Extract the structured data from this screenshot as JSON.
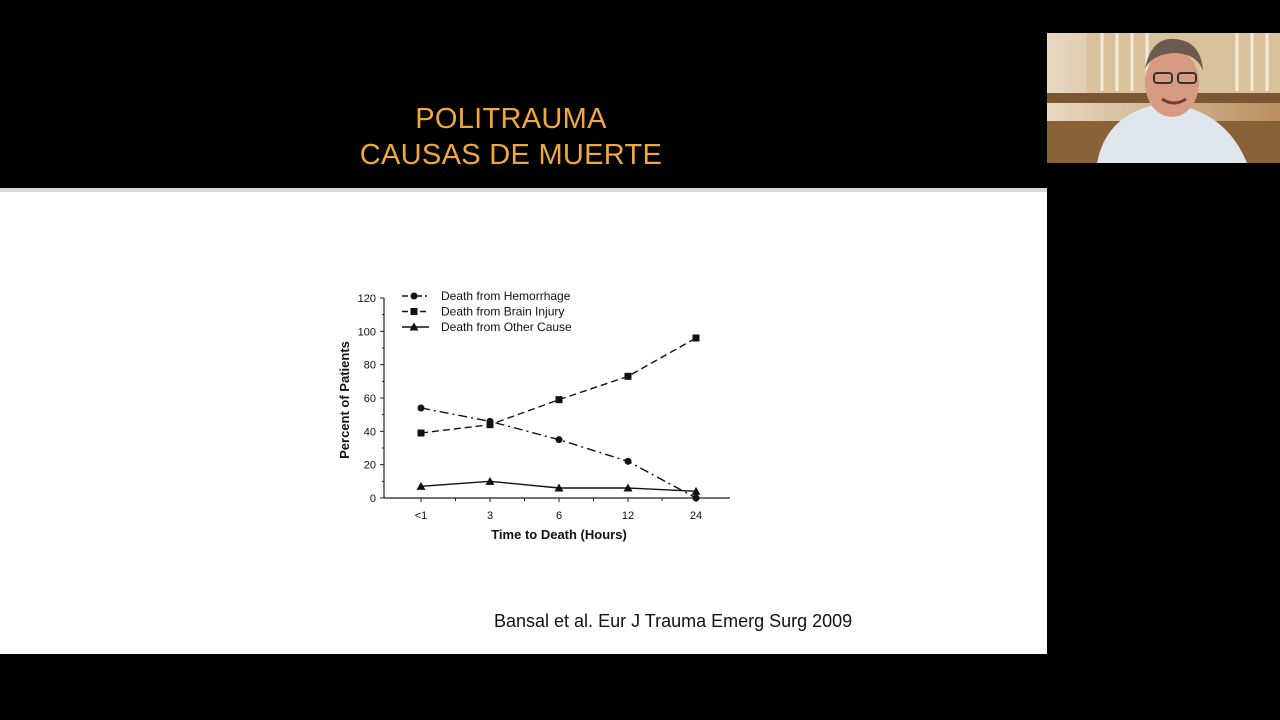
{
  "slide": {
    "title_line_1": "POLITRAUMA",
    "title_line_2": "CAUSAS DE MUERTE",
    "citation": "Bansal et al. Eur J Trauma Emerg Surg 2009",
    "title_color": "#f0a83a"
  },
  "webcam": {
    "icon": "presenter-video-feed"
  },
  "chart_data": {
    "type": "line",
    "categories": [
      "<1",
      "3",
      "6",
      "12",
      "24"
    ],
    "xlabel": "Time to Death (Hours)",
    "ylabel": "Percent of Patients",
    "ylim": [
      0,
      120
    ],
    "yticks": [
      0,
      20,
      40,
      60,
      80,
      100,
      120
    ],
    "grid": false,
    "legend_position": "top-left",
    "series": [
      {
        "name": "Death from Hemorrhage",
        "values": [
          54,
          46,
          35,
          22,
          0
        ],
        "marker": "circle",
        "line": "dash-dot"
      },
      {
        "name": "Death from Brain Injury",
        "values": [
          39,
          44,
          59,
          73,
          96
        ],
        "marker": "square",
        "line": "dashed"
      },
      {
        "name": "Death from Other Cause",
        "values": [
          7,
          10,
          6,
          6,
          4
        ],
        "marker": "triangle",
        "line": "solid"
      }
    ]
  }
}
